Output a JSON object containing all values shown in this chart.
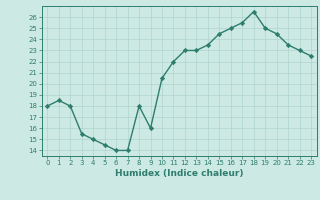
{
  "x": [
    0,
    1,
    2,
    3,
    4,
    5,
    6,
    7,
    8,
    9,
    10,
    11,
    12,
    13,
    14,
    15,
    16,
    17,
    18,
    19,
    20,
    21,
    22,
    23
  ],
  "y": [
    18,
    18.5,
    18,
    15.5,
    15,
    14.5,
    14,
    14,
    18,
    16,
    20.5,
    22,
    23,
    23,
    23.5,
    24.5,
    25,
    25.5,
    26.5,
    25,
    24.5,
    23.5,
    23,
    22.5
  ],
  "line_color": "#2e7d6e",
  "marker": "D",
  "marker_size": 2.2,
  "linewidth": 1.0,
  "xlabel": "Humidex (Indice chaleur)",
  "xlim": [
    -0.5,
    23.5
  ],
  "ylim": [
    13.5,
    27
  ],
  "yticks": [
    14,
    15,
    16,
    17,
    18,
    19,
    20,
    21,
    22,
    23,
    24,
    25,
    26
  ],
  "xticks": [
    0,
    1,
    2,
    3,
    4,
    5,
    6,
    7,
    8,
    9,
    10,
    11,
    12,
    13,
    14,
    15,
    16,
    17,
    18,
    19,
    20,
    21,
    22,
    23
  ],
  "bg_color": "#cce9e4",
  "grid_color": "#aed4ce",
  "tick_color": "#2e7d6e",
  "label_color": "#2e7d6e",
  "tick_fontsize": 5.0,
  "xlabel_fontsize": 6.5
}
